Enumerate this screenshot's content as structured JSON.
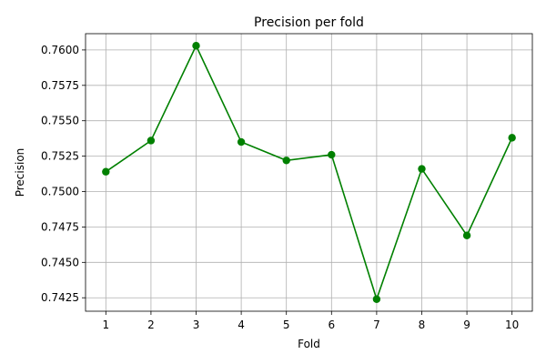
{
  "chart_data": {
    "type": "line",
    "title": "Precision per fold",
    "xlabel": "Fold",
    "ylabel": "Precision",
    "x": [
      1,
      2,
      3,
      4,
      5,
      6,
      7,
      8,
      9,
      10
    ],
    "x_tick_labels": [
      "1",
      "2",
      "3",
      "4",
      "5",
      "6",
      "7",
      "8",
      "9",
      "10"
    ],
    "y_tick_labels": [
      "0.7425",
      "0.7450",
      "0.7475",
      "0.7500",
      "0.7525",
      "0.7550",
      "0.7575",
      "0.7600"
    ],
    "y_ticks": [
      0.7425,
      0.745,
      0.7475,
      0.75,
      0.7525,
      0.755,
      0.7575,
      0.76
    ],
    "xlim": [
      0.55,
      10.45
    ],
    "ylim": [
      0.74155,
      0.76115
    ],
    "grid": true,
    "series": [
      {
        "color": "#008000",
        "marker": "circle",
        "values": [
          0.7514,
          0.7536,
          0.7603,
          0.7535,
          0.7522,
          0.7526,
          0.7424,
          0.7516,
          0.7469,
          0.7538
        ]
      }
    ]
  }
}
